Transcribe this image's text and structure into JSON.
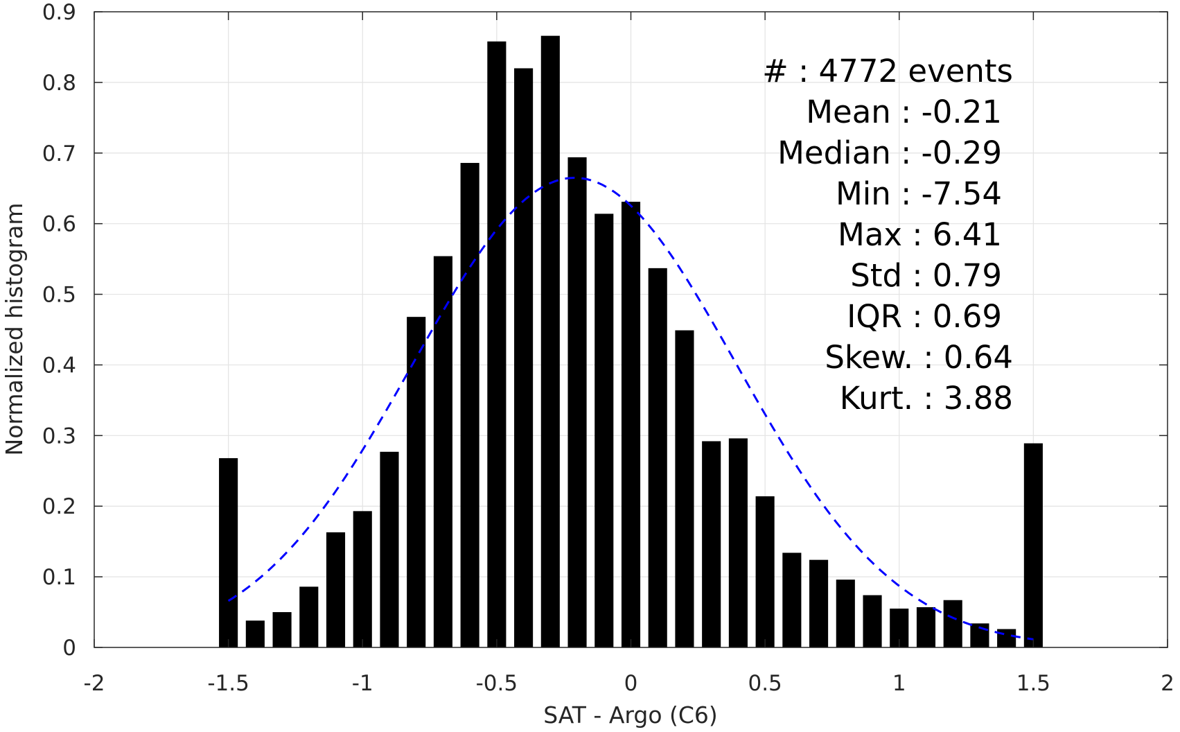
{
  "chart_data": {
    "type": "bar",
    "xlabel": "SAT - Argo (C6)",
    "ylabel": "Normalized histogram",
    "xlim": [
      -2,
      2
    ],
    "ylim": [
      0,
      0.9
    ],
    "xticks": [
      -2,
      -1.5,
      -1,
      -0.5,
      0,
      0.5,
      1,
      1.5,
      2
    ],
    "yticks": [
      0,
      0.1,
      0.2,
      0.3,
      0.4,
      0.5,
      0.6,
      0.7,
      0.8,
      0.9
    ],
    "xtick_labels": [
      "-2",
      "-1.5",
      "-1",
      "-0.5",
      "0",
      "0.5",
      "1",
      "1.5",
      "2"
    ],
    "ytick_labels": [
      "0",
      "0.1",
      "0.2",
      "0.3",
      "0.4",
      "0.5",
      "0.6",
      "0.7",
      "0.8",
      "0.9"
    ],
    "grid": true,
    "bar_width": 0.07,
    "bars": {
      "x": [
        -1.5,
        -1.4,
        -1.3,
        -1.2,
        -1.1,
        -1.0,
        -0.9,
        -0.8,
        -0.7,
        -0.6,
        -0.5,
        -0.4,
        -0.3,
        -0.2,
        -0.1,
        0.0,
        0.1,
        0.2,
        0.3,
        0.4,
        0.5,
        0.6,
        0.7,
        0.8,
        0.9,
        1.0,
        1.1,
        1.2,
        1.3,
        1.4,
        1.5
      ],
      "values": [
        0.268,
        0.038,
        0.05,
        0.086,
        0.163,
        0.193,
        0.277,
        0.468,
        0.554,
        0.686,
        0.858,
        0.82,
        0.866,
        0.694,
        0.614,
        0.631,
        0.537,
        0.449,
        0.292,
        0.296,
        0.214,
        0.134,
        0.124,
        0.096,
        0.074,
        0.055,
        0.057,
        0.067,
        0.034,
        0.026,
        0.289
      ],
      "color": "#000000"
    },
    "fit": {
      "type": "gaussian",
      "mean": -0.21,
      "std": 0.6,
      "x_range": [
        -1.5,
        1.5
      ],
      "style": "dashed",
      "color": "#0000ff"
    },
    "stats": [
      {
        "label": "#  ",
        "value": ": 4772 events"
      },
      {
        "label": "Mean ",
        "value": ": -0.21"
      },
      {
        "label": "Median ",
        "value": ": -0.29"
      },
      {
        "label": "Min ",
        "value": ": -7.54"
      },
      {
        "label": "Max ",
        "value": ": 6.41"
      },
      {
        "label": "Std ",
        "value": ": 0.79"
      },
      {
        "label": "IQR ",
        "value": ": 0.69"
      },
      {
        "label": "Skew. ",
        "value": ": 0.64"
      },
      {
        "label": "Kurt. ",
        "value": ": 3.88"
      }
    ]
  }
}
